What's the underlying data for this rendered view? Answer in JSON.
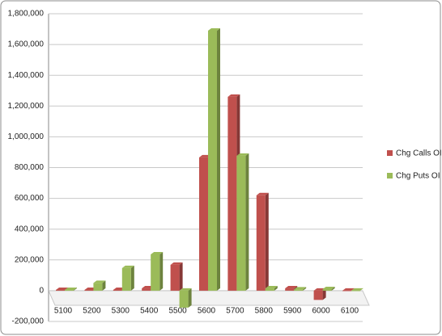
{
  "chart_data": {
    "type": "bar",
    "categories": [
      "5100",
      "5200",
      "5300",
      "5400",
      "5500",
      "5600",
      "5700",
      "5800",
      "5900",
      "6000",
      "6100"
    ],
    "series": [
      {
        "name": "Chg Calls OI",
        "color": "#c0504d",
        "values": [
          5000,
          5000,
          5000,
          15000,
          168000,
          866000,
          1260000,
          620000,
          15000,
          -60000,
          0
        ]
      },
      {
        "name": "Chg Puts OI",
        "color": "#9bbb59",
        "values": [
          5000,
          50000,
          147000,
          236000,
          -110000,
          1690000,
          877000,
          15000,
          8000,
          10000,
          0
        ]
      }
    ],
    "ylim": [
      -200000,
      1800000
    ],
    "yticks": [
      {
        "value": -200000,
        "label": "-200,000"
      },
      0,
      {
        "value": 200000,
        "label": "200,000"
      },
      {
        "value": 400000,
        "label": "400,000"
      },
      {
        "value": 600000,
        "label": "600,000"
      },
      {
        "value": 800000,
        "label": "800,000"
      },
      {
        "value": 1000000,
        "label": "1,000,000"
      },
      {
        "value": 1200000,
        "label": "1,200,000"
      },
      {
        "value": 1400000,
        "label": "1,400,000"
      },
      {
        "value": 1600000,
        "label": "1,600,000"
      },
      {
        "value": 1800000,
        "label": "1,800,000"
      }
    ],
    "grid": true,
    "legend": "right"
  }
}
